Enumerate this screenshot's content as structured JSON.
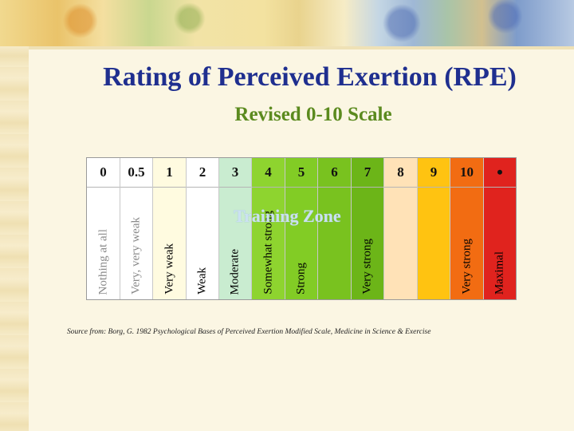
{
  "title": "Rating of Perceived Exertion (RPE)",
  "subtitle": "Revised 0-10 Scale",
  "training_zone_label": "Training Zone",
  "source": "Source from: Borg, G. 1982 Psychological Bases of Perceived Exertion Modified Scale, Medicine in Science & Exercise",
  "scale": [
    {
      "value": "0",
      "label": "Nothing at all",
      "color": "#ffffff",
      "text_color": "#8a8a8a"
    },
    {
      "value": "0.5",
      "label": "Very, very weak",
      "color": "#ffffff",
      "text_color": "#8a8a8a"
    },
    {
      "value": "1",
      "label": "Very weak",
      "color": "#fffbe0",
      "text_color": "#000000"
    },
    {
      "value": "2",
      "label": "Weak",
      "color": "#ffffff",
      "text_color": "#000000"
    },
    {
      "value": "3",
      "label": "Moderate",
      "color": "#c9ecd0",
      "text_color": "#000000"
    },
    {
      "value": "4",
      "label": "Somewhat strong",
      "color": "#8ed42f",
      "text_color": "#000000"
    },
    {
      "value": "5",
      "label": "Strong",
      "color": "#82cc25",
      "text_color": "#000000"
    },
    {
      "value": "6",
      "label": "",
      "color": "#79c21f",
      "text_color": "#000000"
    },
    {
      "value": "7",
      "label": "Very strong",
      "color": "#6cb518",
      "text_color": "#000000"
    },
    {
      "value": "8",
      "label": "",
      "color": "#ffe2b7",
      "text_color": "#000000"
    },
    {
      "value": "9",
      "label": "",
      "color": "#ffc311",
      "text_color": "#000000"
    },
    {
      "value": "10",
      "label": "Very strong",
      "color": "#f26c12",
      "text_color": "#000000"
    },
    {
      "value": "•",
      "label": "Maximal",
      "color": "#e0231e",
      "text_color": "#000000"
    }
  ]
}
